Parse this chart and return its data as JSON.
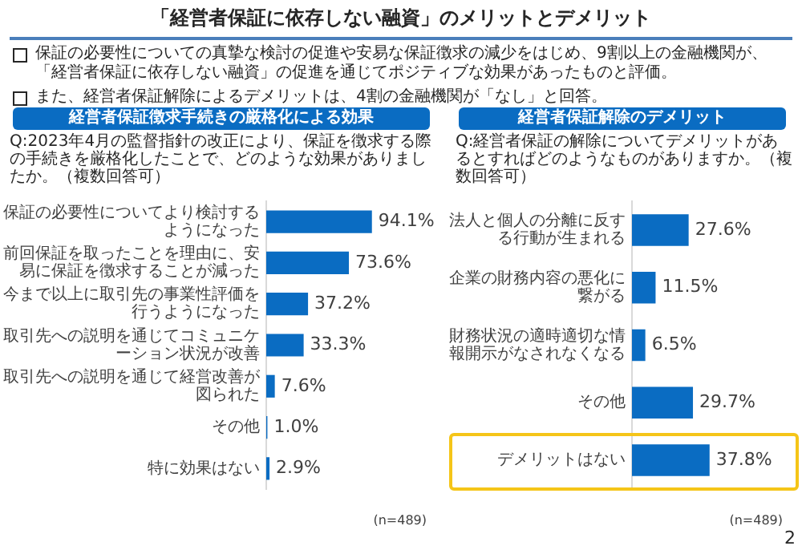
{
  "chart_data": [
    {
      "type": "other",
      "title": "「経営者保証に依存しない融資」のメリットとデメリット",
      "annotations": [
        "保証の必要性についての真摯な検討の促進や安易な保証徴求の減少をはじめ、9割以上の金融機関が、「経営者保証に依存しない融資」の促進を通じてポジティブな効果があったものと評価。",
        "また、経営者保証解除によるデメリットは、4割の金融機関が「なし」と回答。",
        "2"
      ]
    },
    {
      "type": "bar",
      "orientation": "horizontal",
      "title": "経営者保証徴求手続きの厳格化による効果",
      "subtitle": "Q:2023年4月の監督指針の改正により、保証を徴求する際の手続きを厳格化したことで、どのような効果がありましたか。（複数回答可）",
      "categories": [
        "保証の必要性についてより検討するようになった",
        "前回保証を取ったことを理由に、安易に保証を徴求することが減った",
        "今まで以上に取引先の事業性評価を行うようになった",
        "取引先への説明を通じてコミュニケーション状況が改善",
        "取引先への説明を通じて経営改善が図られた",
        "その他",
        "特に効果はない"
      ],
      "values": [
        94.1,
        73.6,
        37.2,
        33.3,
        7.6,
        1.0,
        2.9
      ],
      "value_labels": [
        "94.1%",
        "73.6%",
        "37.2%",
        "33.3%",
        "7.6%",
        "1.0%",
        "2.9%"
      ],
      "color": "#0a6cc2",
      "annotations": [
        "(n=489)"
      ]
    },
    {
      "type": "bar",
      "orientation": "horizontal",
      "title": "経営者保証解除のデメリット",
      "subtitle": "Q:経営者保証の解除についてデメリットがあるとすればどのようなものがありますか。（複数回答可）",
      "categories": [
        "法人と個人の分離に反する行動が生まれる",
        "企業の財務内容の悪化に繋がる",
        "財務状況の適時適切な情報開示がなされなくなる",
        "その他",
        "デメリットはない"
      ],
      "values": [
        27.6,
        11.5,
        6.5,
        29.7,
        37.8
      ],
      "value_labels": [
        "27.6%",
        "11.5%",
        "6.5%",
        "29.7%",
        "37.8%"
      ],
      "color": "#0a6cc2",
      "annotations": [
        "(n=489)"
      ]
    }
  ]
}
